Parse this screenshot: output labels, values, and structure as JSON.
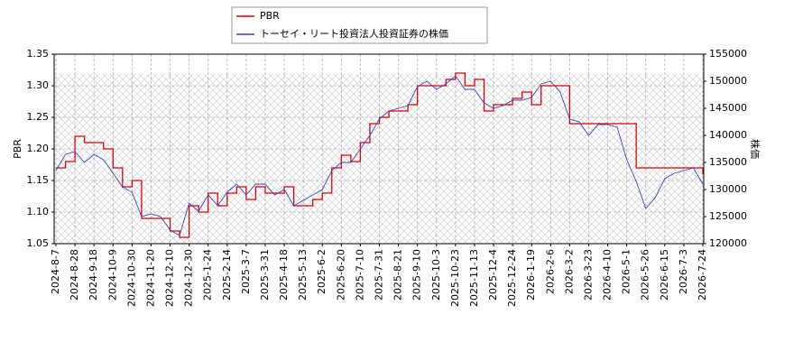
{
  "chart_data": {
    "type": "line",
    "categories": [
      "2024-8-7",
      null,
      "2024-8-28",
      null,
      "2024-9-18",
      null,
      "2024-10-9",
      null,
      "2024-10-30",
      null,
      "2024-11-20",
      null,
      "2024-12-10",
      null,
      "2024-12-30",
      null,
      "2025-1-24",
      null,
      "2025-2-14",
      null,
      "2025-3-7",
      null,
      "2025-3-31",
      null,
      "2025-4-18",
      null,
      "2025-5-13",
      null,
      "2025-6-2",
      null,
      "2025-6-20",
      null,
      "2025-7-10",
      null,
      "2025-7-31",
      null,
      "2025-8-21",
      null,
      "2025-9-10",
      null,
      "2025-10-3",
      null,
      "2025-10-23",
      null,
      "2025-11-13",
      null,
      "2025-12-4",
      null,
      "2025-12-24",
      null,
      "2026-1-19",
      null,
      "2026-2-6",
      null,
      "2026-3-2",
      null,
      "2026-3-23",
      null,
      "2026-4-10",
      null,
      "2026-5-1",
      null,
      "2026-5-26",
      null,
      "2026-6-15",
      null,
      "2026-7-3",
      null,
      "2026-7-24"
    ],
    "series": [
      {
        "name": "PBR",
        "color": "#dd0000",
        "step": "post",
        "values": [
          1.17,
          1.18,
          1.22,
          1.21,
          1.21,
          1.2,
          1.17,
          1.14,
          1.15,
          1.09,
          1.09,
          1.09,
          1.07,
          1.06,
          1.11,
          1.1,
          1.13,
          1.11,
          1.13,
          1.14,
          1.12,
          1.14,
          1.13,
          1.13,
          1.14,
          1.11,
          1.11,
          1.12,
          1.13,
          1.17,
          1.19,
          1.18,
          1.21,
          1.24,
          1.25,
          1.26,
          1.26,
          1.27,
          1.3,
          1.3,
          1.3,
          1.31,
          1.32,
          1.3,
          1.31,
          1.26,
          1.27,
          1.27,
          1.28,
          1.29,
          1.27,
          1.3,
          1.3,
          1.3,
          1.24,
          1.24,
          1.24,
          1.24,
          1.24,
          1.24,
          1.24,
          1.17,
          1.17,
          1.17,
          1.17,
          1.17,
          1.17,
          1.17,
          1.16
        ]
      },
      {
        "name": "トーセイ・リート投資法人投資証券の株価",
        "color": "#3344cc",
        "axis": "y2",
        "values": [
          133500,
          136500,
          137000,
          135000,
          136500,
          135500,
          133000,
          130500,
          129500,
          125000,
          125500,
          125000,
          122500,
          121500,
          127500,
          126000,
          129000,
          127000,
          129500,
          131000,
          129000,
          131000,
          131000,
          129000,
          130000,
          127000,
          128000,
          129000,
          130000,
          133500,
          135000,
          135000,
          137500,
          140000,
          143000,
          144500,
          145000,
          145500,
          149000,
          150000,
          148500,
          149500,
          151000,
          148500,
          148500,
          146000,
          145000,
          145500,
          146500,
          146500,
          147000,
          149500,
          150000,
          148000,
          143000,
          142500,
          140000,
          142000,
          142000,
          141500,
          135500,
          131500,
          126500,
          128500,
          132000,
          133000,
          133500,
          134000,
          131000
        ]
      }
    ],
    "y_label": "PBR",
    "y2_label": "株価",
    "ylim": [
      1.05,
      1.35
    ],
    "yticks": [
      1.05,
      {
        "value": 1.1,
        "label": "1.10"
      },
      1.15,
      {
        "value": 1.2,
        "label": "1.20"
      },
      1.25,
      {
        "value": 1.3,
        "label": "1.30"
      },
      1.35
    ],
    "y2lim": [
      120000,
      155000
    ],
    "y2ticks": [
      120000,
      125000,
      130000,
      135000,
      140000,
      145000,
      150000,
      155000
    ],
    "grid": true
  }
}
